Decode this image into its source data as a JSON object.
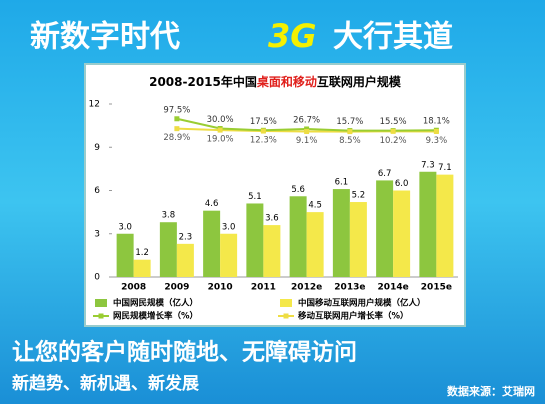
{
  "header": {
    "left": "新数字时代",
    "accent": "3G",
    "right": "大行其道"
  },
  "footer": {
    "slogan": "让您的客户随时随地、无障碍访问",
    "tagline": "新趋势、新机遇、新发展",
    "source": "数据来源：艾瑞网"
  },
  "chart_data": {
    "type": "bar",
    "title_parts": [
      "2008-2015年中国",
      "桌面和移动",
      "互联网用户规模"
    ],
    "categories": [
      "2008",
      "2009",
      "2010",
      "2011",
      "2012e",
      "2013e",
      "2014e",
      "2015e"
    ],
    "ylim": [
      0,
      12
    ],
    "yticks": [
      0,
      3,
      6,
      9,
      12
    ],
    "y2lim": [
      -1000,
      200
    ],
    "series": [
      {
        "name": "中国网民规模（亿人）",
        "type": "bar",
        "color": "#8dc63f",
        "values": [
          3.0,
          3.8,
          4.6,
          5.1,
          5.6,
          6.1,
          6.7,
          7.3
        ],
        "value_labels": [
          "3.0",
          "3.8",
          "4.6",
          "5.1",
          "5.6",
          "6.1",
          "6.7",
          "7.3"
        ]
      },
      {
        "name": "中国移动互联网用户规模（亿人）",
        "type": "bar",
        "color": "#f4e84a",
        "values": [
          1.2,
          2.3,
          3.0,
          3.6,
          4.5,
          5.2,
          6.0,
          7.1
        ],
        "value_labels": [
          "1.2",
          "2.3",
          "3.0",
          "3.6",
          "4.5",
          "5.2",
          "6.0",
          "7.1"
        ]
      },
      {
        "name": "网民规模增长率（%）",
        "type": "line",
        "axis": "y2",
        "color": "#9acd32",
        "values": [
          null,
          97.5,
          30.0,
          17.5,
          26.7,
          15.7,
          15.5,
          18.1
        ],
        "value_labels": [
          null,
          "97.5%",
          "30.0%",
          "17.5%",
          "26.7%",
          "15.7%",
          "15.5%",
          "18.1%"
        ]
      },
      {
        "name": "移动互联网用户增长率（%）",
        "type": "line",
        "axis": "y2",
        "color": "#eedd44",
        "values": [
          null,
          28.9,
          19.0,
          12.3,
          9.1,
          8.5,
          10.2,
          9.3
        ],
        "value_labels": [
          null,
          "28.9%",
          "19.0%",
          "12.3%",
          "9.1%",
          "8.5%",
          "10.2%",
          "9.3%"
        ]
      }
    ]
  }
}
